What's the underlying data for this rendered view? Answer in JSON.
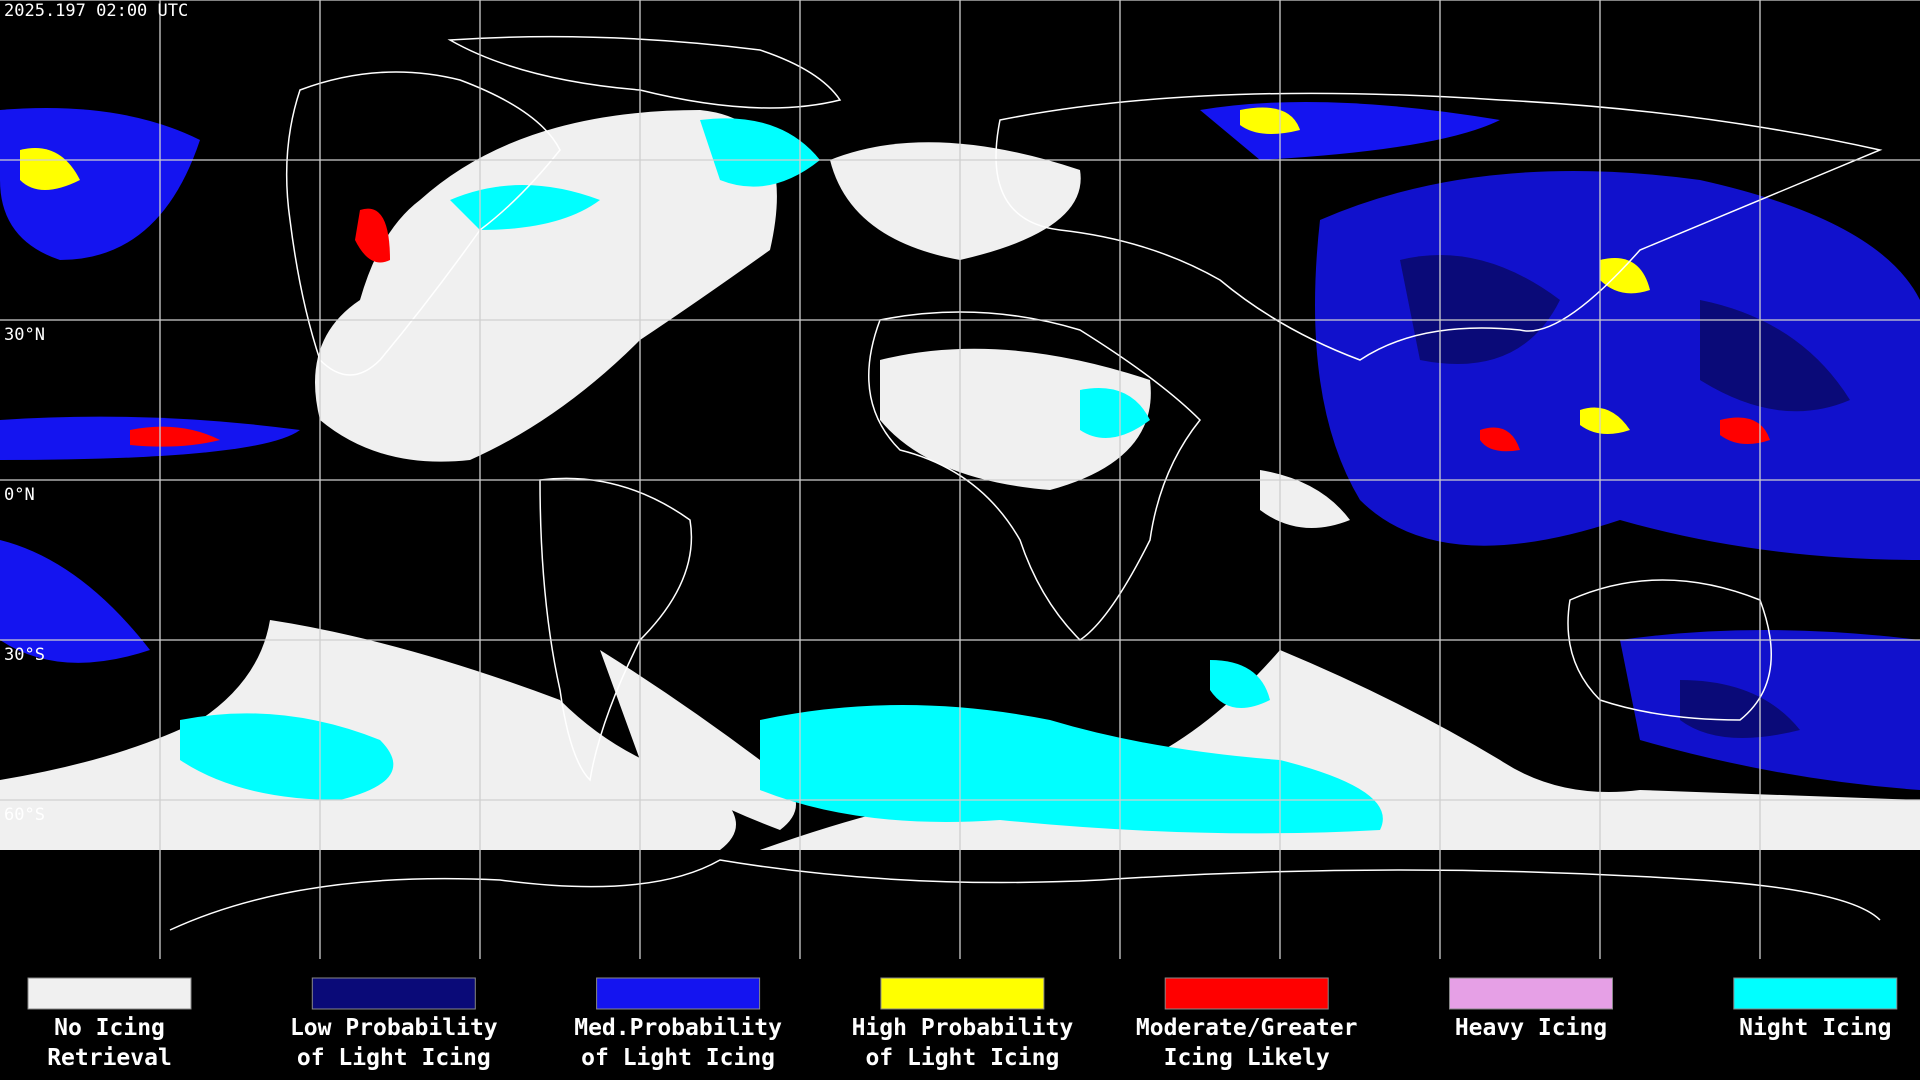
{
  "timestamp": "2025.197 02:00 UTC",
  "latitude_labels": [
    "30°N",
    "0°N",
    "30°S",
    "60°S"
  ],
  "legend": [
    {
      "label": [
        "No Icing",
        "Retrieval"
      ],
      "color": "#f0f0f0"
    },
    {
      "label": [
        "Low Probability",
        "of Light Icing"
      ],
      "color": "#0a0a78"
    },
    {
      "label": [
        "Med.Probability",
        "of Light Icing"
      ],
      "color": "#1414f0"
    },
    {
      "label": [
        "High Probability",
        "of Light Icing"
      ],
      "color": "#ffff00"
    },
    {
      "label": [
        "Moderate/Greater",
        "Icing Likely"
      ],
      "color": "#ff0000"
    },
    {
      "label": [
        "Heavy Icing"
      ],
      "color": "#e6a0e6"
    },
    {
      "label": [
        "Night Icing"
      ],
      "color": "#00ffff"
    }
  ]
}
